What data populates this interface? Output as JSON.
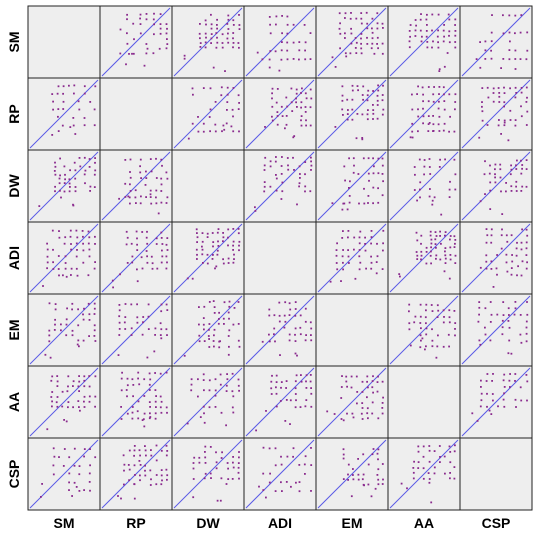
{
  "chart_data": {
    "type": "scatter",
    "variables": [
      "SM",
      "RP",
      "DW",
      "ADI",
      "EM",
      "AA",
      "CSP"
    ],
    "layout": "scatterplot-matrix",
    "diagonal": "empty",
    "panel_background": "#eeeeee",
    "point_color": "#8a2b8e",
    "reference_line_color": "#5a5ae6",
    "reference_line": "y = x",
    "grid": false,
    "legend": "none"
  }
}
